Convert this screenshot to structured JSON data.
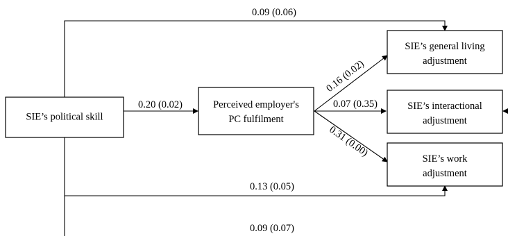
{
  "nodes": {
    "political_skill": {
      "label": "SIE’s political skill"
    },
    "pc_fulfilment": {
      "line1": "Perceived employer's",
      "line2": "PC fulfilment"
    },
    "general_living": {
      "line1": "SIE’s general living",
      "line2": "adjustment"
    },
    "interactional": {
      "line1": "SIE’s interactional",
      "line2": "adjustment"
    },
    "work": {
      "line1": "SIE’s work",
      "line2": "adjustment"
    }
  },
  "edges": {
    "skill_to_general": "0.09 (0.06)",
    "skill_to_pc": "0.20 (0.02)",
    "pc_to_general": "0.16 (0.02)",
    "pc_to_interactional": "0.07 (0.35)",
    "pc_to_work": "0.31 (0.00)",
    "skill_to_work": "0.13 (0.05)",
    "skill_to_interactional": "0.09 (0.07)"
  }
}
